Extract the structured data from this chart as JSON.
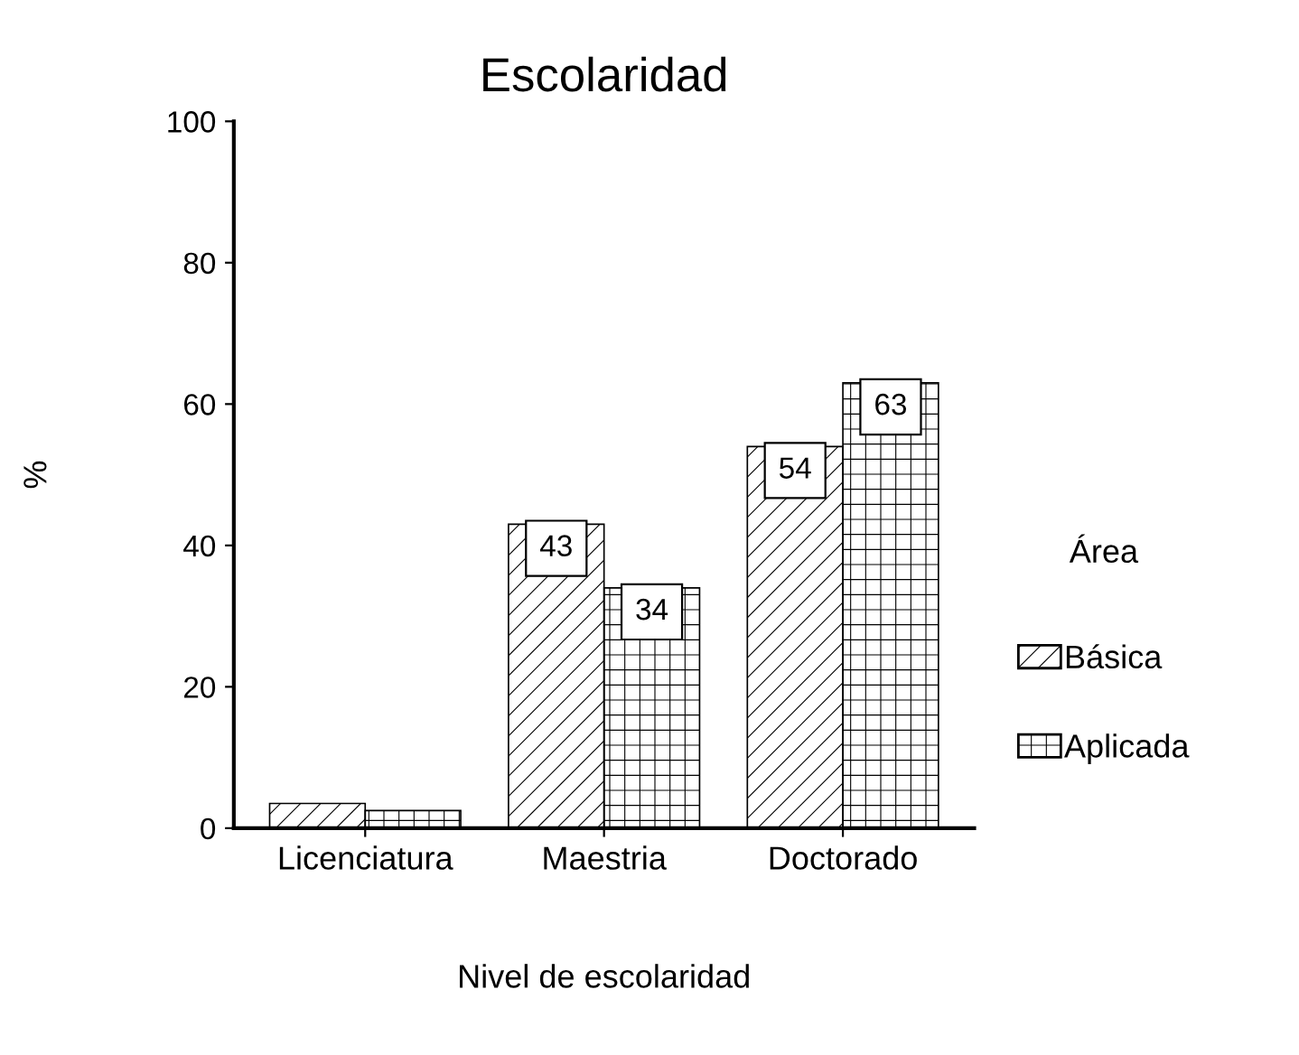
{
  "chart_data": {
    "type": "bar",
    "title": "Escolaridad",
    "xlabel": "Nivel de escolaridad",
    "ylabel": "%",
    "legend_title": "Área",
    "categories": [
      "Licenciatura",
      "Maestria",
      "Doctorado"
    ],
    "series": [
      {
        "name": "Básica",
        "color": "#000000",
        "values": [
          3.5,
          43,
          54
        ],
        "value_labels": [
          null,
          "43",
          "54"
        ]
      },
      {
        "name": "Aplicada",
        "color": "#000000",
        "values": [
          2.5,
          34,
          63
        ],
        "value_labels": [
          null,
          "34",
          "63"
        ]
      }
    ],
    "ylim": [
      0,
      100
    ],
    "yticks": [
      0,
      20,
      40,
      60,
      80,
      100
    ],
    "grid": false,
    "legend": "right"
  }
}
